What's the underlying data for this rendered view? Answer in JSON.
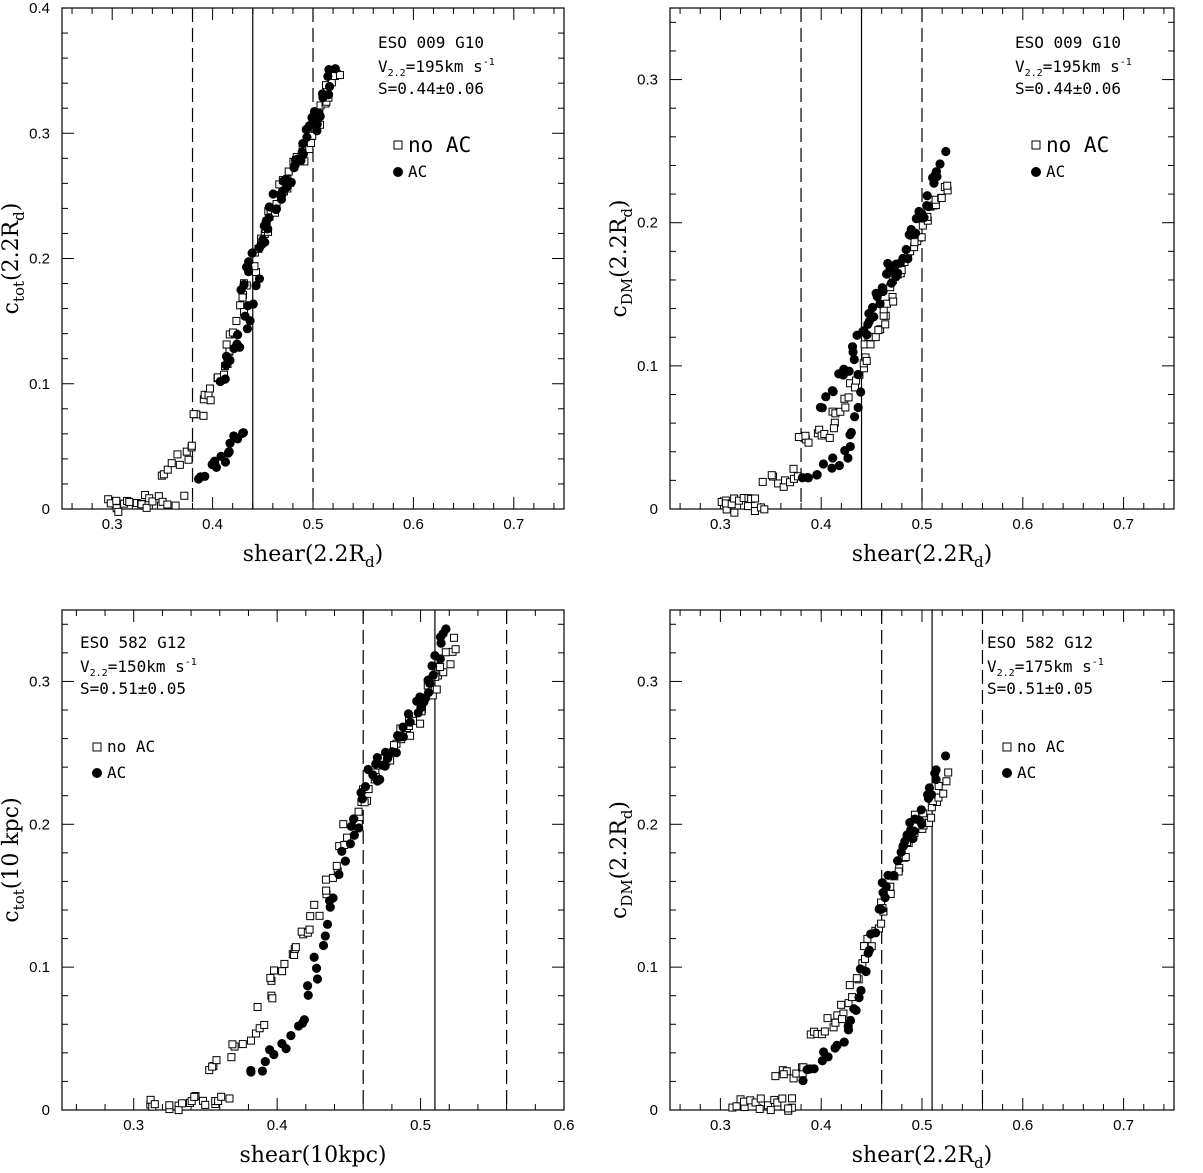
{
  "chart_data": [
    {
      "type": "scatter",
      "panel": "top-left",
      "xlim": [
        0.25,
        0.75
      ],
      "ylim": [
        0,
        0.4
      ],
      "xticks": [
        0.3,
        0.4,
        0.5,
        0.6,
        0.7
      ],
      "xtick_labels": [
        "0.3",
        "0.4",
        "0.5",
        "0.6",
        "0.7"
      ],
      "yticks": [
        0,
        0.1,
        0.2,
        0.3,
        0.4
      ],
      "ytick_labels": [
        "0",
        "0.1",
        "0.2",
        "0.3",
        "0.4"
      ],
      "xlabel_main": "shear(2.2R",
      "xlabel_sub": "d",
      "xlabel_tail": ")",
      "ylabel_main": "c",
      "ylabel_sub": "tot",
      "ylabel_tail": "(2.2R",
      "ylabel_sub2": "d",
      "ylabel_end": ")",
      "vlines": {
        "solid": 0.44,
        "dashed": [
          0.38,
          0.5
        ]
      },
      "annotation": {
        "galaxy": "ESO 009 G10",
        "vel_prefix": "V",
        "vel_sub": "2.2",
        "vel_rest": "=195km s",
        "vel_sup": "-1",
        "shear_text": "S=0.44±0.06"
      },
      "legend": {
        "no_ac": "no AC",
        "ac": "AC",
        "large": true
      },
      "series": [
        {
          "name": "no AC",
          "marker": "open-square",
          "segments": [
            {
              "x0": 0.295,
              "x1": 0.345,
              "y0": 0.002,
              "y1": 0.007,
              "n": 16
            },
            {
              "x0": 0.345,
              "x1": 0.37,
              "y0": 0.007,
              "y1": 0.008,
              "n": 5
            },
            {
              "x0": 0.352,
              "x1": 0.382,
              "y0": 0.028,
              "y1": 0.05,
              "n": 10
            },
            {
              "x0": 0.382,
              "x1": 0.41,
              "y0": 0.072,
              "y1": 0.11,
              "n": 12
            },
            {
              "x0": 0.41,
              "x1": 0.45,
              "y0": 0.11,
              "y1": 0.22,
              "n": 22
            },
            {
              "x0": 0.45,
              "x1": 0.49,
              "y0": 0.22,
              "y1": 0.29,
              "n": 24
            },
            {
              "x0": 0.49,
              "x1": 0.524,
              "y0": 0.28,
              "y1": 0.35,
              "n": 20
            }
          ]
        },
        {
          "name": "AC",
          "marker": "filled-circle",
          "segments": [
            {
              "x0": 0.385,
              "x1": 0.41,
              "y0": 0.028,
              "y1": 0.04,
              "n": 8
            },
            {
              "x0": 0.41,
              "x1": 0.43,
              "y0": 0.035,
              "y1": 0.065,
              "n": 8
            },
            {
              "x0": 0.41,
              "x1": 0.445,
              "y0": 0.1,
              "y1": 0.18,
              "n": 16
            },
            {
              "x0": 0.43,
              "x1": 0.47,
              "y0": 0.18,
              "y1": 0.26,
              "n": 22
            },
            {
              "x0": 0.47,
              "x1": 0.5,
              "y0": 0.25,
              "y1": 0.31,
              "n": 18
            },
            {
              "x0": 0.5,
              "x1": 0.52,
              "y0": 0.3,
              "y1": 0.355,
              "n": 12
            }
          ]
        }
      ]
    },
    {
      "type": "scatter",
      "panel": "top-right",
      "xlim": [
        0.25,
        0.75
      ],
      "ylim": [
        0,
        0.35
      ],
      "xticks": [
        0.3,
        0.4,
        0.5,
        0.6,
        0.7
      ],
      "xtick_labels": [
        "0.3",
        "0.4",
        "0.5",
        "0.6",
        "0.7"
      ],
      "yticks": [
        0,
        0.1,
        0.2,
        0.3
      ],
      "ytick_labels": [
        "0",
        "0.1",
        "0.2",
        "0.3"
      ],
      "xlabel_main": "shear(2.2R",
      "xlabel_sub": "d",
      "xlabel_tail": ")",
      "ylabel_main": "c",
      "ylabel_sub": "DM",
      "ylabel_tail": "(2.2R",
      "ylabel_sub2": "d",
      "ylabel_end": ")",
      "vlines": {
        "solid": 0.44,
        "dashed": [
          0.38,
          0.5
        ]
      },
      "annotation": {
        "galaxy": "ESO 009 G10",
        "vel_prefix": "V",
        "vel_sub": "2.2",
        "vel_rest": "=195km s",
        "vel_sup": "-1",
        "shear_text": "S=0.44±0.06"
      },
      "legend": {
        "no_ac": "no AC",
        "ac": "AC",
        "large": true
      },
      "series": [
        {
          "name": "no AC",
          "marker": "open-square",
          "segments": [
            {
              "x0": 0.3,
              "x1": 0.34,
              "y0": 0.002,
              "y1": 0.003,
              "n": 16
            },
            {
              "x0": 0.345,
              "x1": 0.38,
              "y0": 0.018,
              "y1": 0.024,
              "n": 10
            },
            {
              "x0": 0.38,
              "x1": 0.41,
              "y0": 0.046,
              "y1": 0.056,
              "n": 10
            },
            {
              "x0": 0.41,
              "x1": 0.44,
              "y0": 0.06,
              "y1": 0.1,
              "n": 12
            },
            {
              "x0": 0.44,
              "x1": 0.47,
              "y0": 0.1,
              "y1": 0.15,
              "n": 16
            },
            {
              "x0": 0.47,
              "x1": 0.5,
              "y0": 0.15,
              "y1": 0.2,
              "n": 16
            },
            {
              "x0": 0.5,
              "x1": 0.524,
              "y0": 0.2,
              "y1": 0.228,
              "n": 12
            }
          ]
        },
        {
          "name": "AC",
          "marker": "filled-circle",
          "segments": [
            {
              "x0": 0.38,
              "x1": 0.43,
              "y0": 0.017,
              "y1": 0.04,
              "n": 12
            },
            {
              "x0": 0.43,
              "x1": 0.44,
              "y0": 0.05,
              "y1": 0.09,
              "n": 6
            },
            {
              "x0": 0.4,
              "x1": 0.44,
              "y0": 0.07,
              "y1": 0.12,
              "n": 14
            },
            {
              "x0": 0.44,
              "x1": 0.47,
              "y0": 0.12,
              "y1": 0.17,
              "n": 16
            },
            {
              "x0": 0.47,
              "x1": 0.5,
              "y0": 0.16,
              "y1": 0.21,
              "n": 16
            },
            {
              "x0": 0.5,
              "x1": 0.52,
              "y0": 0.2,
              "y1": 0.25,
              "n": 12
            }
          ]
        }
      ]
    },
    {
      "type": "scatter",
      "panel": "bottom-left",
      "xlim": [
        0.25,
        0.6
      ],
      "ylim": [
        0,
        0.35
      ],
      "xticks": [
        0.3,
        0.4,
        0.5,
        0.6
      ],
      "xtick_labels": [
        "0.3",
        "0.4",
        "0.5",
        "0.6"
      ],
      "yticks": [
        0,
        0.1,
        0.2,
        0.3
      ],
      "ytick_labels": [
        "0",
        "0.1",
        "0.2",
        "0.3"
      ],
      "xlabel_main": "shear(10kpc)",
      "xlabel_sub": "",
      "xlabel_tail": "",
      "ylabel_main": "c",
      "ylabel_sub": "tot",
      "ylabel_tail": "(10 kpc)",
      "ylabel_sub2": "",
      "ylabel_end": "",
      "vlines": {
        "solid": 0.51,
        "dashed": [
          0.46,
          0.56
        ]
      },
      "annotation": {
        "galaxy": "ESO 582 G12",
        "vel_prefix": "V",
        "vel_sub": "2.2",
        "vel_rest": "=150km s",
        "vel_sup": "-1",
        "shear_text": "S=0.51±0.05"
      },
      "legend": {
        "no_ac": "no AC",
        "ac": "AC",
        "large": false
      },
      "series": [
        {
          "name": "no AC",
          "marker": "open-square",
          "segments": [
            {
              "x0": 0.31,
              "x1": 0.365,
              "y0": 0.003,
              "y1": 0.008,
              "n": 20
            },
            {
              "x0": 0.35,
              "x1": 0.39,
              "y0": 0.03,
              "y1": 0.055,
              "n": 12
            },
            {
              "x0": 0.39,
              "x1": 0.42,
              "y0": 0.075,
              "y1": 0.125,
              "n": 14
            },
            {
              "x0": 0.42,
              "x1": 0.46,
              "y0": 0.125,
              "y1": 0.22,
              "n": 20
            },
            {
              "x0": 0.46,
              "x1": 0.49,
              "y0": 0.22,
              "y1": 0.27,
              "n": 18
            },
            {
              "x0": 0.49,
              "x1": 0.524,
              "y0": 0.26,
              "y1": 0.33,
              "n": 22
            }
          ]
        },
        {
          "name": "AC",
          "marker": "filled-circle",
          "segments": [
            {
              "x0": 0.38,
              "x1": 0.42,
              "y0": 0.025,
              "y1": 0.06,
              "n": 12
            },
            {
              "x0": 0.42,
              "x1": 0.445,
              "y0": 0.08,
              "y1": 0.16,
              "n": 12
            },
            {
              "x0": 0.445,
              "x1": 0.47,
              "y0": 0.17,
              "y1": 0.25,
              "n": 14
            },
            {
              "x0": 0.47,
              "x1": 0.5,
              "y0": 0.23,
              "y1": 0.29,
              "n": 18
            },
            {
              "x0": 0.5,
              "x1": 0.52,
              "y0": 0.28,
              "y1": 0.34,
              "n": 14
            }
          ]
        }
      ]
    },
    {
      "type": "scatter",
      "panel": "bottom-right",
      "xlim": [
        0.25,
        0.75
      ],
      "ylim": [
        0,
        0.35
      ],
      "xticks": [
        0.3,
        0.4,
        0.5,
        0.6,
        0.7
      ],
      "xtick_labels": [
        "0.3",
        "0.4",
        "0.5",
        "0.6",
        "0.7"
      ],
      "yticks": [
        0,
        0.1,
        0.2,
        0.3
      ],
      "ytick_labels": [
        "0",
        "0.1",
        "0.2",
        "0.3"
      ],
      "xlabel_main": "shear(2.2R",
      "xlabel_sub": "d",
      "xlabel_tail": ")",
      "ylabel_main": "c",
      "ylabel_sub": "DM",
      "ylabel_tail": "(2.2R",
      "ylabel_sub2": "d",
      "ylabel_end": ")",
      "vlines": {
        "solid": 0.51,
        "dashed": [
          0.46,
          0.56
        ]
      },
      "annotation": {
        "galaxy": "ESO 582 G12",
        "vel_prefix": "V",
        "vel_sub": "2.2",
        "vel_rest": "=175km s",
        "vel_sup": "-1",
        "shear_text": "S=0.51±0.05"
      },
      "legend": {
        "no_ac": "no AC",
        "ac": "AC",
        "large": false
      },
      "series": [
        {
          "name": "no AC",
          "marker": "open-square",
          "segments": [
            {
              "x0": 0.31,
              "x1": 0.375,
              "y0": 0.003,
              "y1": 0.004,
              "n": 18
            },
            {
              "x0": 0.355,
              "x1": 0.39,
              "y0": 0.025,
              "y1": 0.03,
              "n": 10
            },
            {
              "x0": 0.39,
              "x1": 0.42,
              "y0": 0.055,
              "y1": 0.065,
              "n": 10
            },
            {
              "x0": 0.42,
              "x1": 0.46,
              "y0": 0.065,
              "y1": 0.14,
              "n": 16
            },
            {
              "x0": 0.46,
              "x1": 0.5,
              "y0": 0.14,
              "y1": 0.21,
              "n": 18
            },
            {
              "x0": 0.5,
              "x1": 0.524,
              "y0": 0.2,
              "y1": 0.232,
              "n": 12
            }
          ]
        },
        {
          "name": "AC",
          "marker": "filled-circle",
          "segments": [
            {
              "x0": 0.38,
              "x1": 0.43,
              "y0": 0.02,
              "y1": 0.06,
              "n": 12
            },
            {
              "x0": 0.43,
              "x1": 0.46,
              "y0": 0.06,
              "y1": 0.15,
              "n": 14
            },
            {
              "x0": 0.46,
              "x1": 0.49,
              "y0": 0.15,
              "y1": 0.2,
              "n": 14
            },
            {
              "x0": 0.49,
              "x1": 0.52,
              "y0": 0.19,
              "y1": 0.247,
              "n": 14
            }
          ]
        }
      ]
    }
  ]
}
